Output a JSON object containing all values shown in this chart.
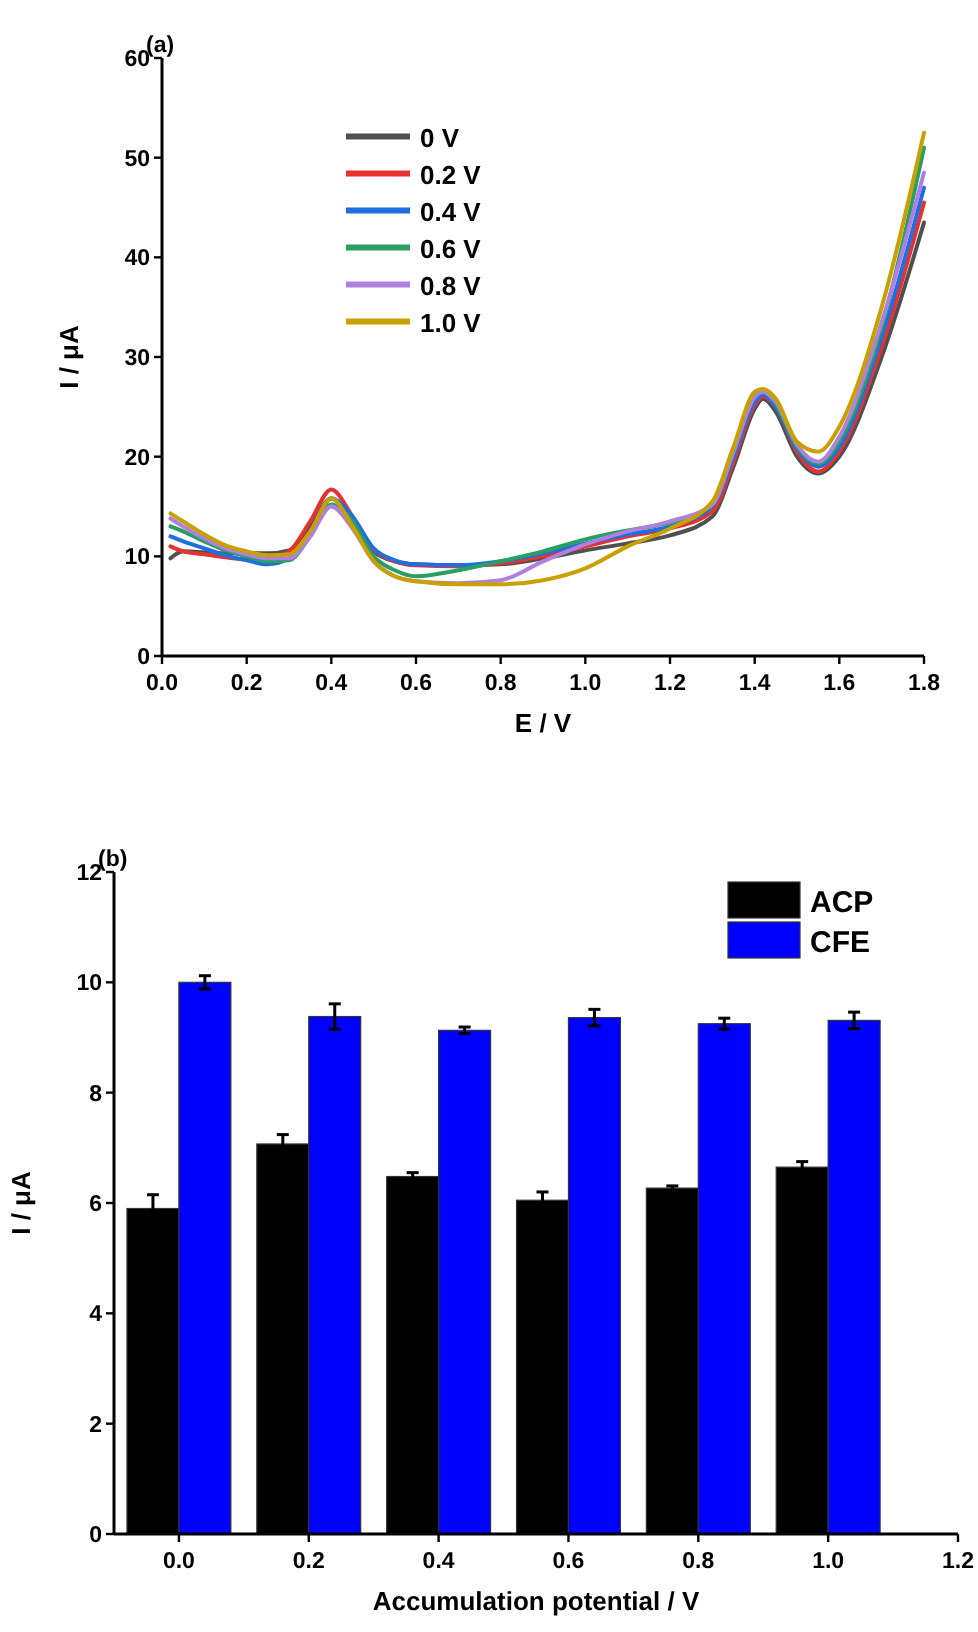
{
  "chart_data": [
    {
      "type": "line",
      "title": "(a)",
      "xlabel": "E / V",
      "ylabel": "I / μA",
      "legend": "top left",
      "xlim": [
        0,
        1.8
      ],
      "ylim": [
        0,
        60
      ],
      "xticks": [
        {
          "value": 0,
          "label": "0.0"
        },
        {
          "value": 0.2,
          "label": "0.2"
        },
        {
          "value": 0.4,
          "label": "0.4"
        },
        {
          "value": 0.6,
          "label": "0.6"
        },
        {
          "value": 0.8,
          "label": "0.8"
        },
        {
          "value": 1,
          "label": "1.0"
        },
        {
          "value": 1.2,
          "label": "1.2"
        },
        {
          "value": 1.4,
          "label": "1.4"
        },
        {
          "value": 1.6,
          "label": "1.6"
        },
        {
          "value": 1.8,
          "label": "1.8"
        }
      ],
      "yticks": [
        0,
        10,
        20,
        30,
        40,
        50,
        60
      ],
      "x": [
        0.02,
        0.05,
        0.1,
        0.15,
        0.2,
        0.25,
        0.3,
        0.35,
        0.4,
        0.45,
        0.5,
        0.55,
        0.6,
        0.7,
        0.8,
        0.9,
        1.0,
        1.1,
        1.2,
        1.3,
        1.35,
        1.4,
        1.42,
        1.45,
        1.5,
        1.55,
        1.6,
        1.7,
        1.8
      ],
      "series": [
        {
          "name": "0 V",
          "color": "#505050",
          "values": [
            9.8,
            10.5,
            10.4,
            10.3,
            10.3,
            10.3,
            10.6,
            13,
            15.8,
            13.5,
            10.5,
            9.5,
            9.2,
            9.1,
            9.2,
            9.8,
            10.6,
            11.3,
            12.1,
            14,
            19,
            24.8,
            25.8,
            24.5,
            20,
            18.3,
            20,
            30,
            43.5
          ]
        },
        {
          "name": "0.2 V",
          "color": "#e83030",
          "values": [
            11,
            10.5,
            10.2,
            9.9,
            9.7,
            9.8,
            10.5,
            13.5,
            16.7,
            14,
            10.7,
            9.5,
            9.1,
            9.0,
            9.3,
            10,
            11,
            12,
            12.8,
            14.5,
            19.5,
            25.2,
            26,
            25,
            20.5,
            18.5,
            20.5,
            31,
            45.5
          ]
        },
        {
          "name": "0.4 V",
          "color": "#1f6fe0",
          "values": [
            12,
            11.5,
            10.8,
            10.1,
            9.6,
            9.2,
            9.8,
            12.5,
            15.8,
            14,
            10.8,
            9.6,
            9.2,
            9.1,
            9.5,
            10.3,
            11.3,
            12.2,
            13,
            15,
            20,
            25.5,
            26.2,
            25,
            20.8,
            19,
            21,
            32,
            47
          ]
        },
        {
          "name": "0.6 V",
          "color": "#2aa060",
          "values": [
            13,
            12.5,
            11.5,
            10.6,
            10,
            9.5,
            9.6,
            12,
            15.2,
            13.5,
            10,
            8.6,
            8,
            8.6,
            9.5,
            10.5,
            11.7,
            12.6,
            13.4,
            15.2,
            20.5,
            26,
            26.5,
            25.3,
            21,
            19.3,
            21.5,
            33,
            51
          ]
        },
        {
          "name": "0.8 V",
          "color": "#b080e0",
          "values": [
            13.8,
            13,
            11.8,
            10.8,
            10.2,
            9.8,
            9.8,
            12,
            15,
            12.8,
            9.5,
            8,
            7.5,
            7.3,
            7.6,
            9.5,
            11.2,
            12.5,
            13.5,
            15.2,
            20.5,
            26,
            26.5,
            25.5,
            21.2,
            19.5,
            22,
            33.5,
            48.5
          ]
        },
        {
          "name": "1.0 V",
          "color": "#c8a000",
          "values": [
            14.3,
            13.5,
            12.2,
            11.1,
            10.5,
            10.1,
            10.2,
            12.5,
            15.8,
            13,
            9.5,
            8,
            7.5,
            7.2,
            7.2,
            7.6,
            8.8,
            11,
            12.8,
            15.5,
            21,
            26.5,
            26.8,
            25.8,
            21.5,
            20.5,
            23,
            35,
            52.5
          ]
        }
      ]
    },
    {
      "type": "bar",
      "title": "(b)",
      "xlabel": "Accumulation potential / V",
      "ylabel": "I / μA",
      "legend": "top right",
      "xlim": [
        -0.1,
        1.2
      ],
      "ylim": [
        0,
        12
      ],
      "xticks": [
        {
          "value": 0,
          "label": "0.0"
        },
        {
          "value": 0.2,
          "label": "0.2"
        },
        {
          "value": 0.4,
          "label": "0.4"
        },
        {
          "value": 0.6,
          "label": "0.6"
        },
        {
          "value": 0.8,
          "label": "0.8"
        },
        {
          "value": 1,
          "label": "1.0"
        },
        {
          "value": 1.2,
          "label": "1.2"
        }
      ],
      "yticks": [
        0,
        2,
        4,
        6,
        8,
        10,
        12
      ],
      "x": [
        0,
        0.2,
        0.4,
        0.6,
        0.8,
        1.0
      ],
      "series": [
        {
          "name": "ACP",
          "color": "#000000",
          "values": [
            5.9,
            7.07,
            6.48,
            6.05,
            6.27,
            6.65
          ],
          "errors": [
            0.25,
            0.17,
            0.07,
            0.15,
            0.04,
            0.1
          ]
        },
        {
          "name": "CFE",
          "color": "#0000ff",
          "values": [
            10.0,
            9.38,
            9.13,
            9.36,
            9.25,
            9.31
          ],
          "errors": [
            0.12,
            0.23,
            0.06,
            0.15,
            0.1,
            0.15
          ]
        }
      ]
    }
  ]
}
